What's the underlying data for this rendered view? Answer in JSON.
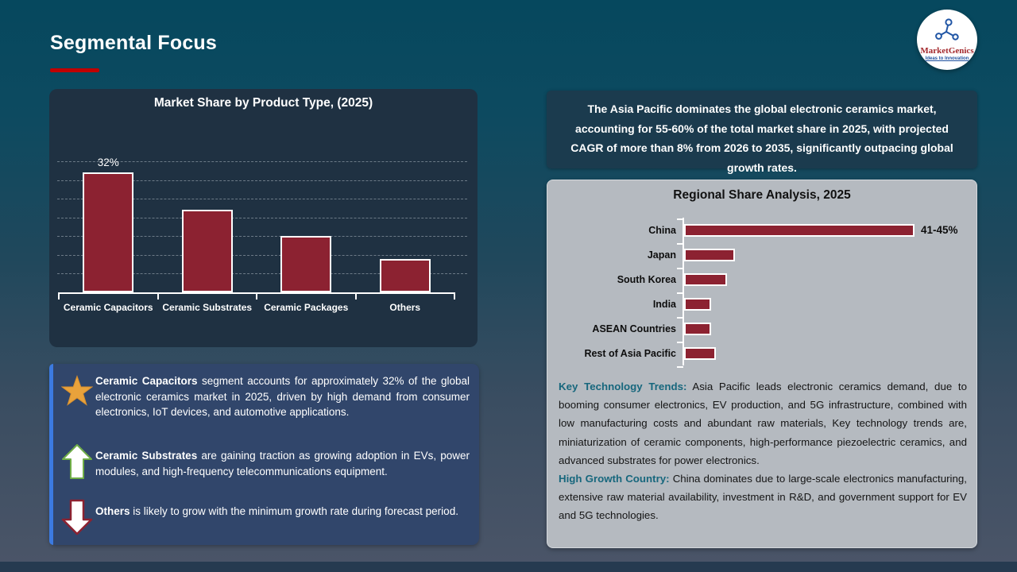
{
  "header": {
    "title": "Segmental Focus",
    "logo_name": "MarketGenics",
    "logo_tagline": "Ideas to Innovation"
  },
  "highlight": {
    "text": "The Asia Pacific dominates the global electronic ceramics market, accounting for 55-60% of the total market share in 2025, with projected CAGR of more than 8% from 2026 to 2035, significantly outpacing global growth rates."
  },
  "chart_data": [
    {
      "type": "bar",
      "orientation": "vertical",
      "title": "Market Share by Product Type, (2025)",
      "categories": [
        "Ceramic Capacitors",
        "Ceramic Substrates",
        "Ceramic Packages",
        "Others"
      ],
      "values": [
        32,
        22,
        15,
        9
      ],
      "data_labels": [
        "32%",
        "",
        "",
        ""
      ],
      "ylabel": "",
      "xlabel": "",
      "ylim": [
        0,
        35
      ],
      "gridline_step": 5,
      "grid": true,
      "legend": false,
      "bar_color": "#8c2231"
    },
    {
      "type": "bar",
      "orientation": "horizontal",
      "title": "Regional Share Analysis, 2025",
      "categories": [
        "China",
        "Japan",
        "South Korea",
        "India",
        "ASEAN Countries",
        "Rest of Asia Pacific"
      ],
      "values": [
        43,
        9.5,
        8,
        5,
        5,
        6
      ],
      "data_labels": [
        "41-45%",
        "",
        "",
        "",
        "",
        ""
      ],
      "ylabel": "",
      "xlabel": "",
      "xlim": [
        0,
        55
      ],
      "grid": false,
      "legend": false,
      "bar_color": "#8c2231"
    }
  ],
  "insights": [
    {
      "icon": "star-icon",
      "bold": "Ceramic Capacitors",
      "text": "segment accounts for approximately 32% of the global electronic ceramics market in 2025, driven by high demand from consumer electronics, IoT devices, and automotive applications."
    },
    {
      "icon": "up-arrow-icon",
      "bold": "Ceramic Substrates",
      "text": "are gaining traction as growing adoption in EVs, power modules, and high-frequency telecommunications equipment."
    },
    {
      "icon": "down-arrow-icon",
      "bold": "Others",
      "text": "is likely to grow with the minimum growth rate during forecast period."
    }
  ],
  "trends": [
    {
      "label": "Key Technology Trends:",
      "text": "Asia Pacific leads electronic ceramics demand, due to booming consumer electronics, EV production, and 5G infrastructure, combined with low manufacturing costs and abundant raw materials, Key technology trends are, miniaturization of ceramic components, high-performance piezoelectric ceramics, and advanced substrates for power electronics."
    },
    {
      "label": "High Growth Country:",
      "text": "China dominates due to large-scale electronics manufacturing, extensive raw material availability, investment in R&D, and government support for EV and 5G technologies."
    }
  ],
  "colors": {
    "bar_red": "#8c2231",
    "accent_red": "#c00000",
    "panel_navy": "#1f3142",
    "highlight_navy": "#1b3b4e",
    "insight_blue": "#31466b",
    "insight_stripe": "#3c7ae0",
    "gray_panel": "#b5bac0",
    "teal_label": "#17677d",
    "star_gold": "#e9a23b",
    "arrow_green": "#6fad47"
  }
}
